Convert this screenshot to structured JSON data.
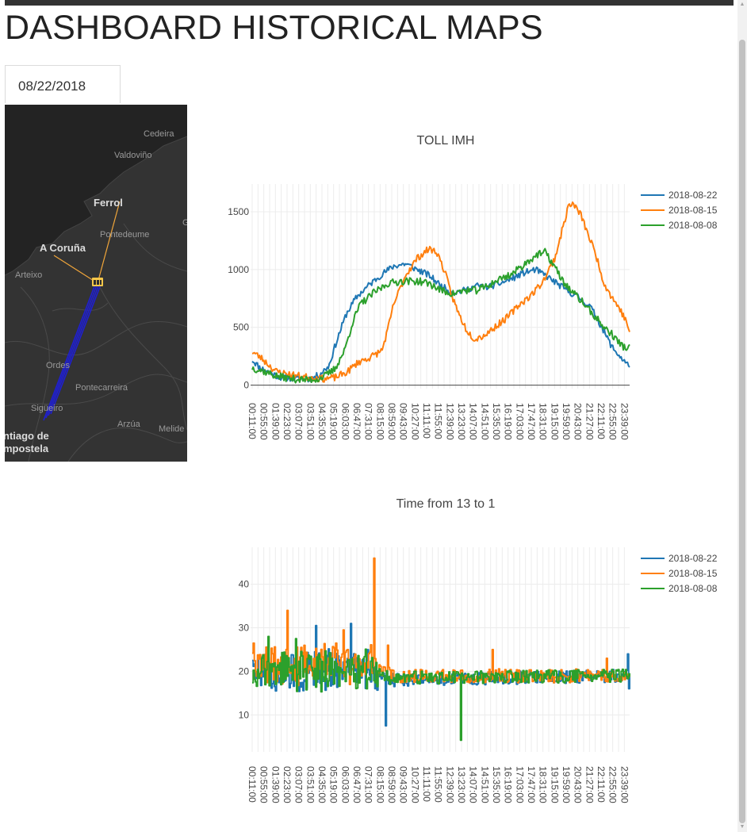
{
  "page": {
    "title": "DASHBOARD HISTORICAL MAPS"
  },
  "date_picker": {
    "value": "08/22/2018"
  },
  "map": {
    "labels": {
      "cedeira": "Cedeira",
      "valdovino": "Valdoviño",
      "ferrol": "Ferrol",
      "pontedeume": "Pontedeume",
      "a_coruna": "A Coruña",
      "arteixo": "Arteixo",
      "ordes": "Ordes",
      "pontecarreira": "Pontecarreira",
      "sigueiro": "Sigüeiro",
      "arzua": "Arzúa",
      "melide": "Melide",
      "santiago_1": "ntiago de",
      "santiago_2": "mpostela",
      "g": "G"
    },
    "colors": {
      "background": "#2e2e2e",
      "land_lines": "#4a4a4a",
      "route_orange": "#f0a53a",
      "route_blue": "#1f1fd0",
      "toll_marker": "#f6c74a"
    },
    "toll_icon": "toll-booth-icon"
  },
  "chart_data": [
    {
      "type": "line",
      "title": "TOLL IMH",
      "x_start": "00:11:00",
      "x_end": "23:59:00",
      "x_step_minutes": 4,
      "x_tick_labels": [
        "00:11:00",
        "00:55:00",
        "01:39:00",
        "02:23:00",
        "03:07:00",
        "03:51:00",
        "04:35:00",
        "05:19:00",
        "06:03:00",
        "06:47:00",
        "07:31:00",
        "08:15:00",
        "08:59:00",
        "09:43:00",
        "10:27:00",
        "11:11:00",
        "11:55:00",
        "12:39:00",
        "13:23:00",
        "14:07:00",
        "14:51:00",
        "15:35:00",
        "16:19:00",
        "17:03:00",
        "17:47:00",
        "18:31:00",
        "19:15:00",
        "19:59:00",
        "20:43:00",
        "21:27:00",
        "22:11:00",
        "22:55:00",
        "23:39:00"
      ],
      "y_ticks": [
        0,
        500,
        1000,
        1500
      ],
      "ylim": [
        -30,
        1740
      ],
      "legend": "top-right",
      "grid": true,
      "series": [
        {
          "name": "2018-08-22",
          "color": "#1f77b4",
          "seed": 11,
          "noise": 28,
          "keypoints": [
            [
              0,
              220
            ],
            [
              20,
              150
            ],
            [
              70,
              70
            ],
            [
              120,
              55
            ],
            [
              150,
              55
            ],
            [
              170,
              90
            ],
            [
              195,
              165
            ],
            [
              210,
              330
            ],
            [
              225,
              480
            ],
            [
              240,
              620
            ],
            [
              265,
              760
            ],
            [
              295,
              860
            ],
            [
              330,
              960
            ],
            [
              360,
              1030
            ],
            [
              390,
              1050
            ],
            [
              420,
              1000
            ],
            [
              450,
              950
            ],
            [
              480,
              860
            ],
            [
              510,
              800
            ],
            [
              540,
              820
            ],
            [
              570,
              860
            ],
            [
              600,
              850
            ],
            [
              630,
              880
            ],
            [
              660,
              920
            ],
            [
              690,
              970
            ],
            [
              720,
              1000
            ],
            [
              750,
              940
            ],
            [
              775,
              880
            ],
            [
              800,
              820
            ],
            [
              830,
              760
            ],
            [
              860,
              680
            ],
            [
              880,
              560
            ],
            [
              900,
              430
            ],
            [
              915,
              330
            ],
            [
              935,
              250
            ],
            [
              955,
              175
            ],
            [
              960,
              180
            ]
          ]
        },
        {
          "name": "2018-08-15",
          "color": "#ff7f0e",
          "seed": 23,
          "noise": 30,
          "keypoints": [
            [
              0,
              290
            ],
            [
              25,
              230
            ],
            [
              60,
              120
            ],
            [
              100,
              90
            ],
            [
              140,
              70
            ],
            [
              180,
              55
            ],
            [
              210,
              65
            ],
            [
              240,
              110
            ],
            [
              270,
              200
            ],
            [
              300,
              240
            ],
            [
              330,
              300
            ],
            [
              345,
              480
            ],
            [
              360,
              700
            ],
            [
              390,
              950
            ],
            [
              420,
              1100
            ],
            [
              450,
              1180
            ],
            [
              470,
              1150
            ],
            [
              490,
              980
            ],
            [
              505,
              800
            ],
            [
              525,
              620
            ],
            [
              545,
              480
            ],
            [
              565,
              400
            ],
            [
              590,
              430
            ],
            [
              620,
              510
            ],
            [
              650,
              590
            ],
            [
              680,
              700
            ],
            [
              710,
              780
            ],
            [
              740,
              900
            ],
            [
              770,
              1100
            ],
            [
              790,
              1360
            ],
            [
              805,
              1560
            ],
            [
              818,
              1560
            ],
            [
              835,
              1480
            ],
            [
              855,
              1300
            ],
            [
              875,
              1120
            ],
            [
              895,
              880
            ],
            [
              915,
              760
            ],
            [
              935,
              660
            ],
            [
              950,
              560
            ],
            [
              960,
              470
            ]
          ]
        },
        {
          "name": "2018-08-08",
          "color": "#2ca02c",
          "seed": 37,
          "noise": 32,
          "keypoints": [
            [
              0,
              150
            ],
            [
              30,
              120
            ],
            [
              60,
              80
            ],
            [
              100,
              55
            ],
            [
              140,
              45
            ],
            [
              170,
              55
            ],
            [
              190,
              90
            ],
            [
              210,
              140
            ],
            [
              235,
              300
            ],
            [
              255,
              540
            ],
            [
              275,
              700
            ],
            [
              310,
              800
            ],
            [
              345,
              880
            ],
            [
              380,
              900
            ],
            [
              420,
              900
            ],
            [
              450,
              880
            ],
            [
              480,
              820
            ],
            [
              510,
              790
            ],
            [
              540,
              820
            ],
            [
              570,
              820
            ],
            [
              600,
              860
            ],
            [
              630,
              920
            ],
            [
              660,
              960
            ],
            [
              690,
              1040
            ],
            [
              720,
              1120
            ],
            [
              745,
              1150
            ],
            [
              765,
              1050
            ],
            [
              790,
              900
            ],
            [
              810,
              820
            ],
            [
              840,
              720
            ],
            [
              870,
              600
            ],
            [
              895,
              500
            ],
            [
              915,
              440
            ],
            [
              935,
              360
            ],
            [
              950,
              320
            ],
            [
              960,
              330
            ]
          ]
        }
      ]
    },
    {
      "type": "line",
      "title": "Time from 13 to 1",
      "x_start": "00:11:00",
      "x_end": "23:59:00",
      "x_step_minutes": 4,
      "x_tick_labels": [
        "00:11:00",
        "00:55:00",
        "01:39:00",
        "02:23:00",
        "03:07:00",
        "03:51:00",
        "04:35:00",
        "05:19:00",
        "06:03:00",
        "06:47:00",
        "07:31:00",
        "08:15:00",
        "08:59:00",
        "09:43:00",
        "10:27:00",
        "11:11:00",
        "11:55:00",
        "12:39:00",
        "13:23:00",
        "14:07:00",
        "14:51:00",
        "15:35:00",
        "16:19:00",
        "17:03:00",
        "17:47:00",
        "18:31:00",
        "19:15:00",
        "19:59:00",
        "20:43:00",
        "21:27:00",
        "22:11:00",
        "22:55:00",
        "23:39:00"
      ],
      "y_ticks": [
        10,
        20,
        30,
        40
      ],
      "ylim": [
        1.5,
        48.5
      ],
      "legend": "top-right",
      "grid": true,
      "series": [
        {
          "name": "2018-08-22",
          "color": "#1f77b4",
          "seed": 51,
          "noise": 1.5,
          "keypoints": [
            [
              0,
              20
            ],
            [
              150,
              20
            ],
            [
              300,
              21
            ],
            [
              330,
              19
            ],
            [
              360,
              18
            ],
            [
              960,
              19
            ]
          ],
          "spikes": [
            [
              340,
              7.5
            ],
            [
              160,
              30.5
            ],
            [
              250,
              31
            ],
            [
              60,
              15.5
            ],
            [
              955,
              24
            ],
            [
              958,
              16
            ]
          ]
        },
        {
          "name": "2018-08-15",
          "color": "#ff7f0e",
          "seed": 63,
          "noise": 1.6,
          "keypoints": [
            [
              0,
              21
            ],
            [
              120,
              22
            ],
            [
              300,
              22
            ],
            [
              330,
              20
            ],
            [
              360,
              19
            ],
            [
              960,
              19
            ]
          ],
          "spikes": [
            [
              310,
              46
            ],
            [
              90,
              34
            ],
            [
              230,
              29.5
            ],
            [
              345,
              26
            ],
            [
              610,
              25
            ],
            [
              900,
              23
            ]
          ]
        },
        {
          "name": "2018-08-08",
          "color": "#2ca02c",
          "seed": 77,
          "noise": 1.5,
          "keypoints": [
            [
              0,
              20
            ],
            [
              150,
              20
            ],
            [
              300,
              20
            ],
            [
              330,
              19
            ],
            [
              360,
              18.5
            ],
            [
              960,
              19
            ]
          ],
          "spikes": [
            [
              530,
              4.2
            ],
            [
              40,
              28
            ],
            [
              110,
              27.5
            ],
            [
              290,
              16
            ],
            [
              350,
              17
            ]
          ]
        }
      ]
    }
  ]
}
